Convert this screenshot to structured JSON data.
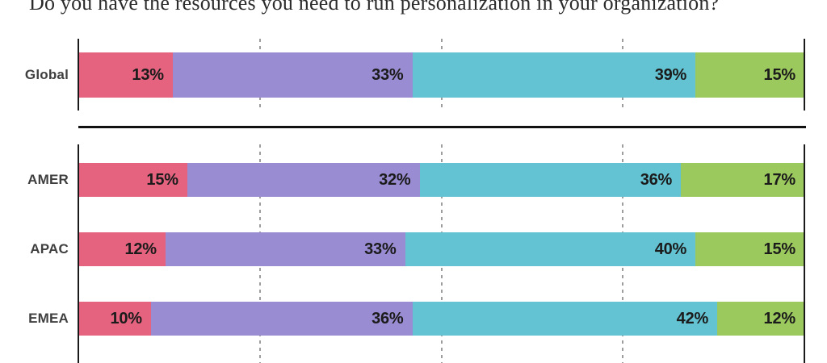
{
  "title": "Do you have the resources you need to run personalization in your organization?",
  "colors": {
    "pink": "#E5637F",
    "purple": "#998CD2",
    "teal": "#63C3D2",
    "green": "#9CC95D",
    "axis": "#1A1A1A",
    "separator": "#111111",
    "gridline": "#9E9E9E",
    "category_label": "#3F3F3F",
    "value_label": "#1B1B1B",
    "background": "#FFFFFF"
  },
  "chart_data": {
    "type": "bar",
    "variant": "stacked-horizontal",
    "unit": "%",
    "title": "Do you have the resources you need to run personalization in your organization?",
    "categories": [
      "Global",
      "AMER",
      "APAC",
      "EMEA"
    ],
    "series": [
      {
        "name": "pink",
        "values": [
          13,
          15,
          12,
          10
        ]
      },
      {
        "name": "purple",
        "values": [
          33,
          32,
          33,
          36
        ]
      },
      {
        "name": "teal",
        "values": [
          39,
          36,
          40,
          42
        ]
      },
      {
        "name": "green",
        "values": [
          15,
          17,
          15,
          12
        ]
      }
    ],
    "panels": [
      [
        "Global"
      ],
      [
        "AMER",
        "APAC",
        "EMEA"
      ]
    ],
    "xlim": [
      0,
      100
    ],
    "gridlines_pct": [
      25,
      50,
      75
    ],
    "grid_style": "dashed-vertical",
    "legend": "none",
    "value_label_format": "{value}%"
  }
}
